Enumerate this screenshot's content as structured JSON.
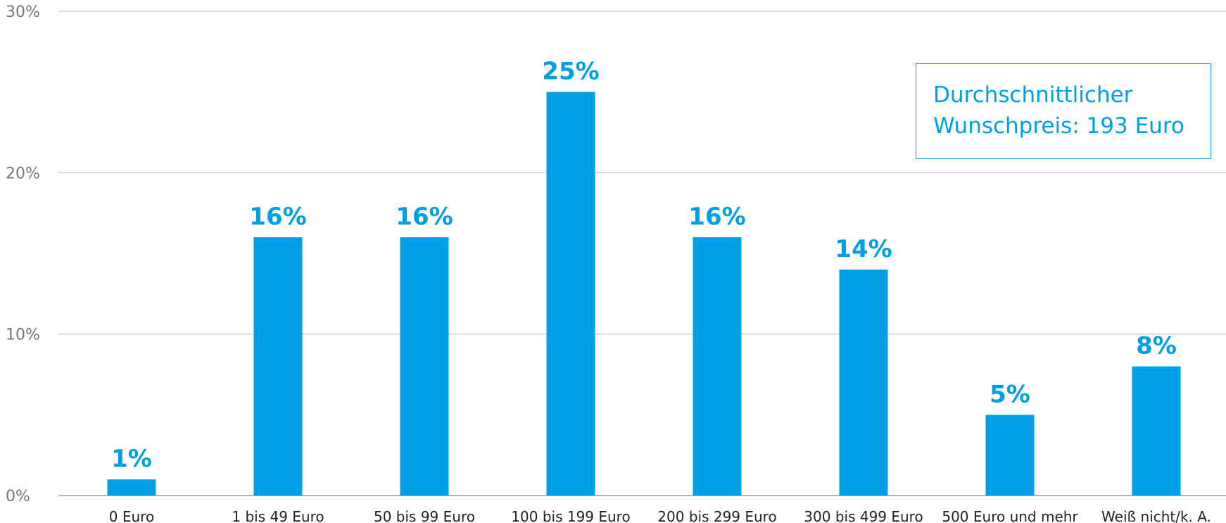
{
  "chart_data": {
    "type": "bar",
    "categories": [
      "0 Euro",
      "1 bis 49 Euro",
      "50 bis 99 Euro",
      "100 bis 199 Euro",
      "200 bis 299 Euro",
      "300 bis 499 Euro",
      "500 Euro und mehr",
      "Weiß nicht/k. A."
    ],
    "values": [
      1,
      16,
      16,
      25,
      16,
      14,
      5,
      8
    ],
    "value_labels": [
      "1%",
      "16%",
      "16%",
      "25%",
      "16%",
      "14%",
      "5%",
      "8%"
    ],
    "ylim": [
      0,
      30
    ],
    "yticks": [
      0,
      10,
      20,
      30
    ],
    "ytick_labels": [
      "0%",
      "10%",
      "20%",
      "30%"
    ],
    "grid": true,
    "colors": {
      "bar": "#009fe3",
      "label": "#009fe3",
      "grid": "#cfcfcf"
    }
  },
  "annotation": {
    "line1": "Durchschnittlicher",
    "line2": "Wunschpreis: 193 Euro"
  }
}
